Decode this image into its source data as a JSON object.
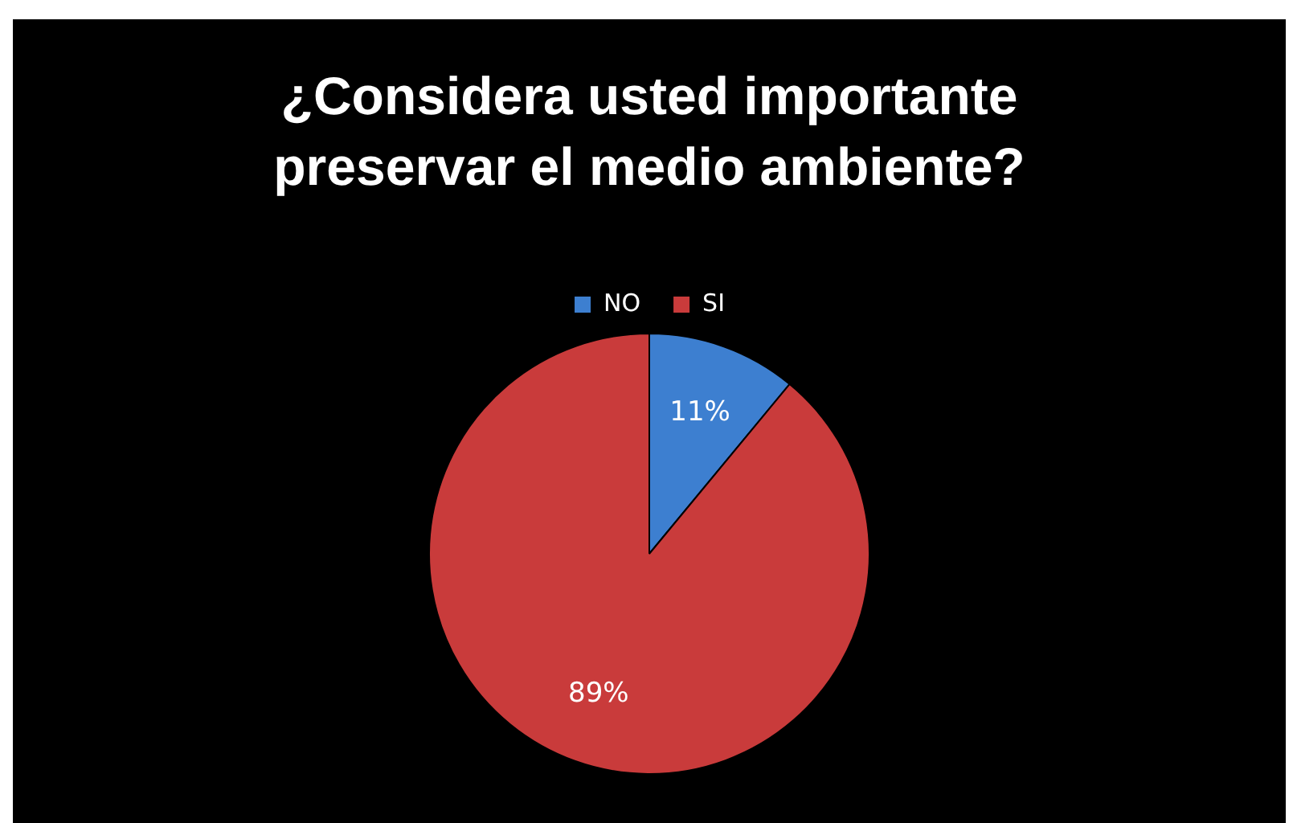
{
  "chart_data": {
    "type": "pie",
    "title": "¿Considera usted importante preservar el medio ambiente?",
    "categories": [
      "NO",
      "SI"
    ],
    "values": [
      11,
      89
    ],
    "colors": [
      "#3d7fd0",
      "#c93b3b"
    ],
    "value_labels": [
      "11%",
      "89%"
    ],
    "legend": "top"
  }
}
